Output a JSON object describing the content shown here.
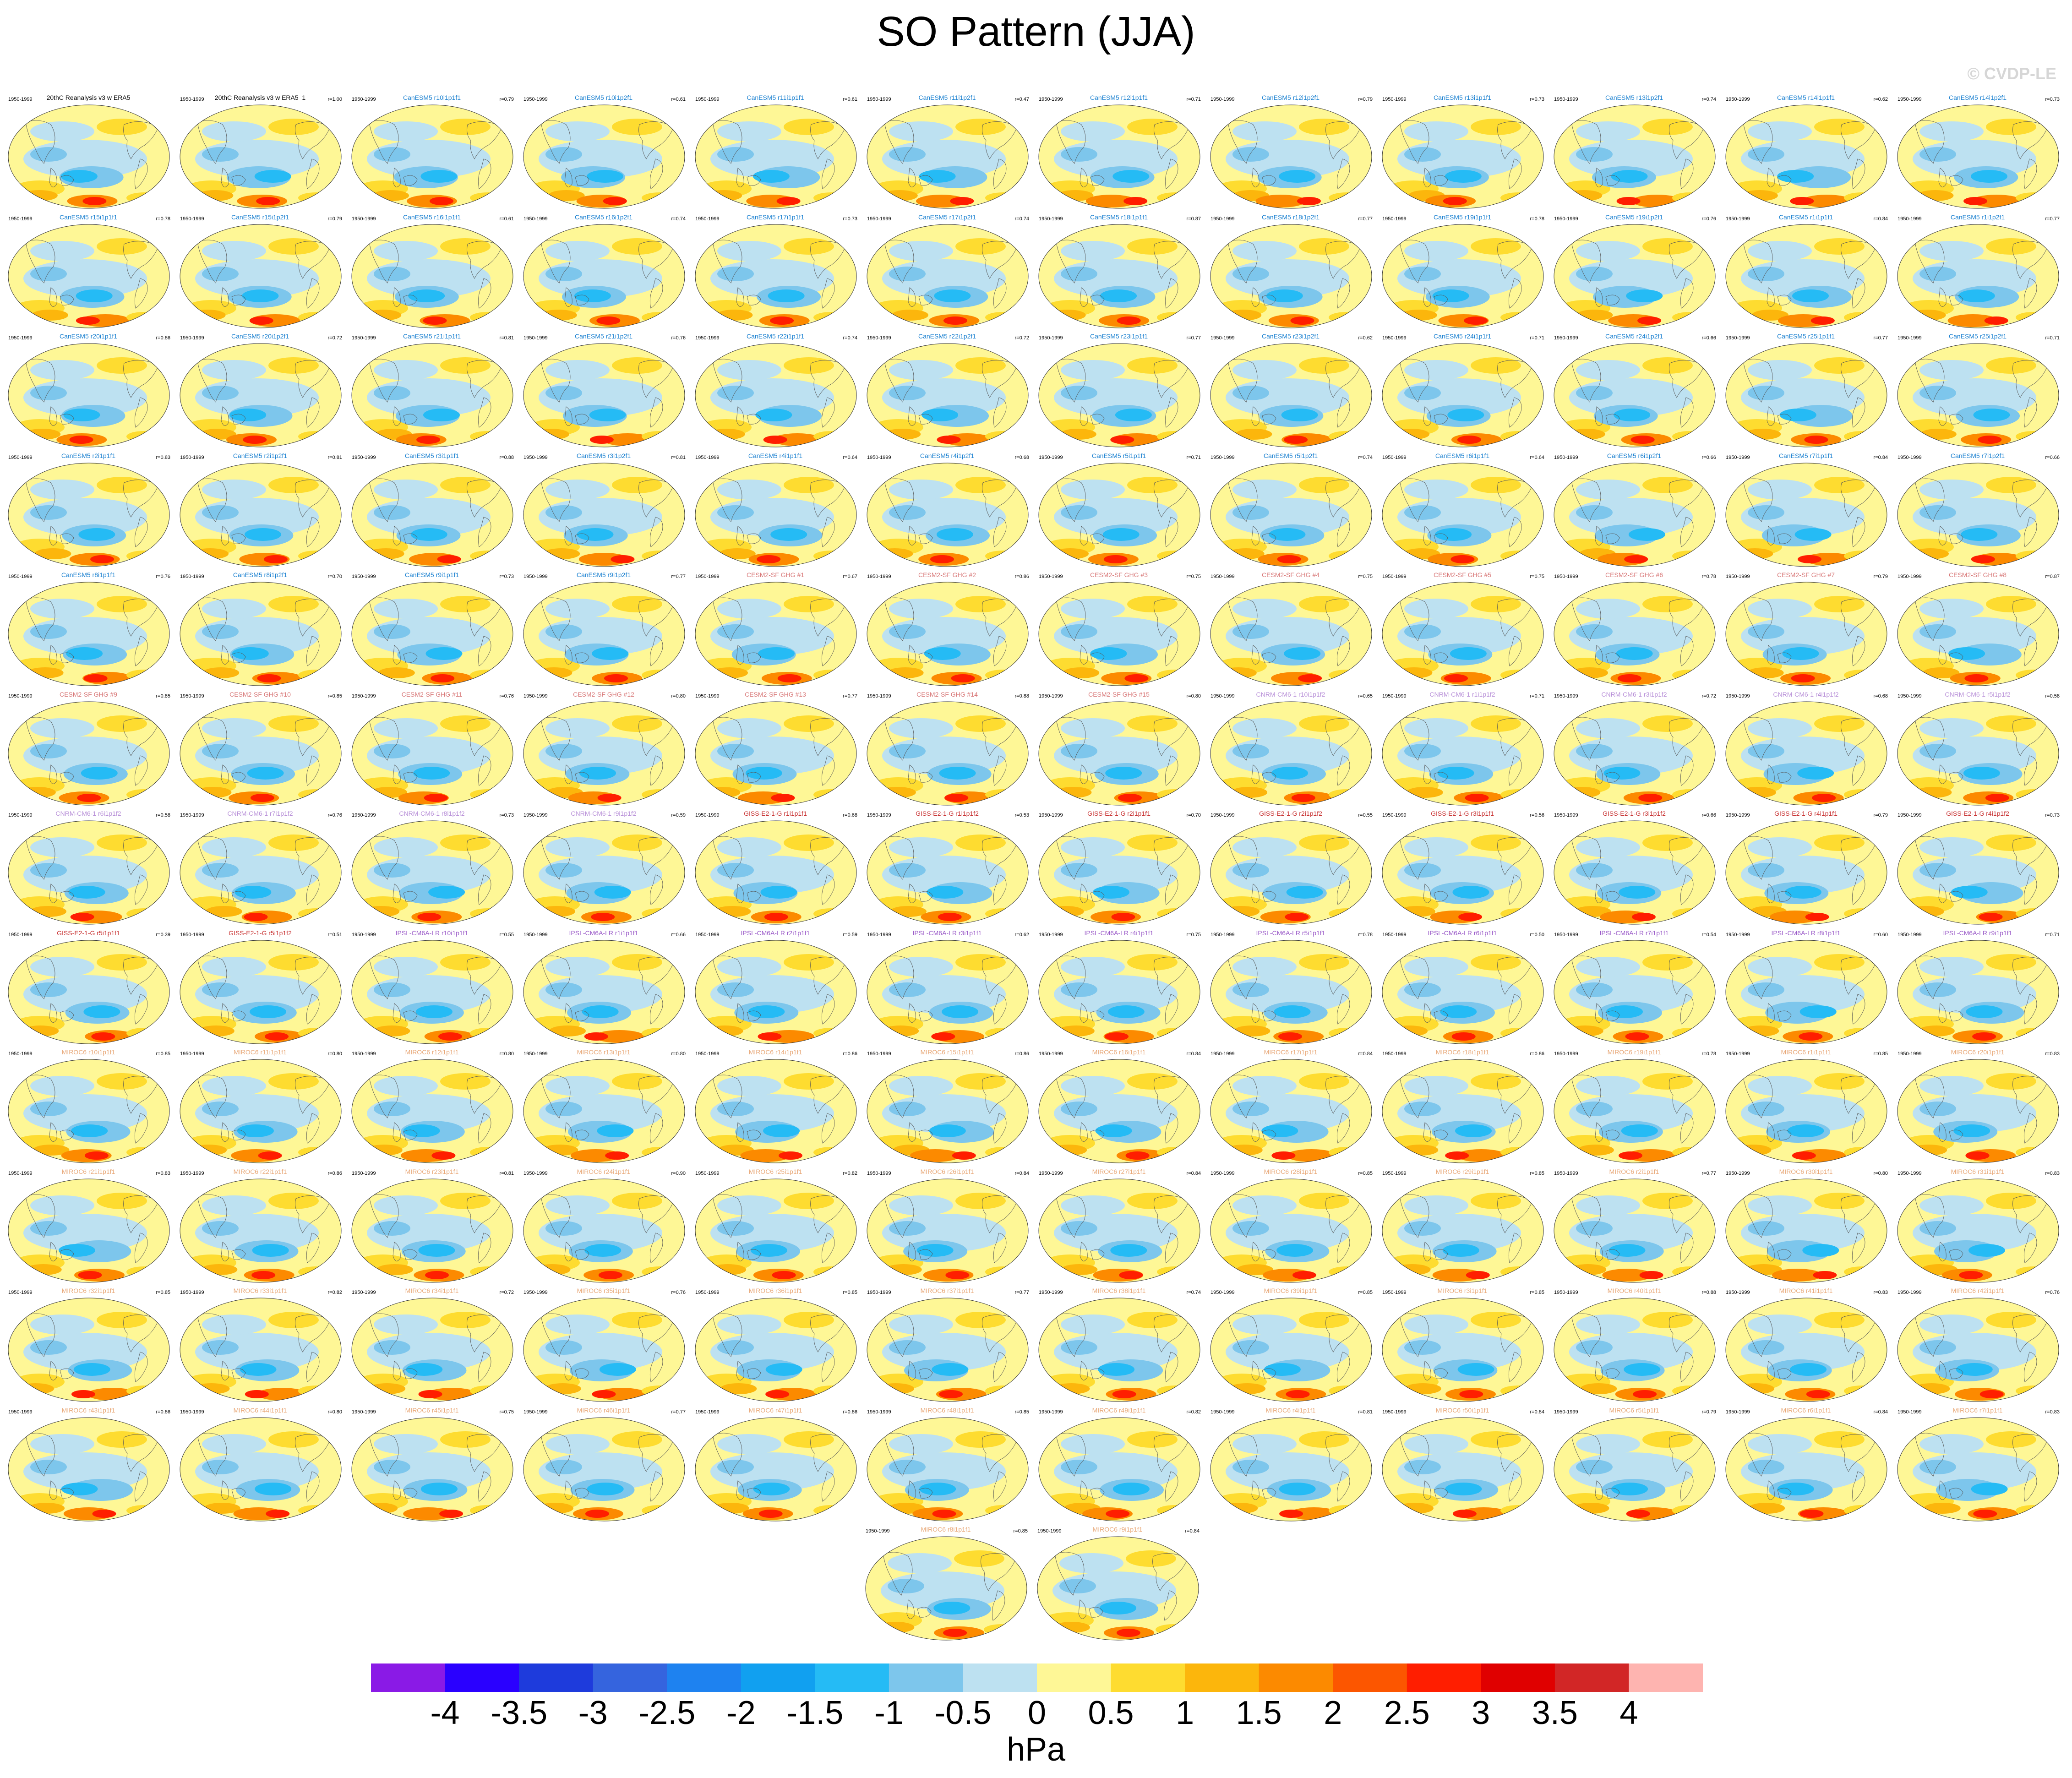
{
  "title": "SO Pattern (JJA)",
  "copyright": "© CVDP-LE",
  "units": "hPa",
  "colorbar": {
    "colors": [
      "#8a1ae6",
      "#2a00ff",
      "#1e3bdc",
      "#3564de",
      "#1e82f0",
      "#11a0f0",
      "#25bbf5",
      "#7dc6ec",
      "#bde1f1",
      "#fef796",
      "#fedc30",
      "#fcb60c",
      "#fc8a00",
      "#fc5600",
      "#ff1e00",
      "#e00000",
      "#d22626",
      "#feb4b0"
    ],
    "tick_labels": [
      "-4",
      "-3.5",
      "-3",
      "-2.5",
      "-2",
      "-1.5",
      "-1",
      "-0.5",
      "0",
      "0.5",
      "1",
      "1.5",
      "2",
      "2.5",
      "3",
      "3.5",
      "4"
    ]
  },
  "panel_period": "1950-1999",
  "panels": [
    {
      "label": "20thC Reanalysis v3 w ERA5",
      "r": "",
      "color": "#000000"
    },
    {
      "label": "20thC Reanalysis v3 w ERA5_1",
      "r": "r=1.00",
      "color": "#000000"
    },
    {
      "label": "CanESM5 r10i1p1f1",
      "r": "r=0.79",
      "color": "#1a80d0"
    },
    {
      "label": "CanESM5 r10i1p2f1",
      "r": "r=0.61",
      "color": "#1a80d0"
    },
    {
      "label": "CanESM5 r11i1p1f1",
      "r": "r=0.61",
      "color": "#1a80d0"
    },
    {
      "label": "CanESM5 r11i1p2f1",
      "r": "r=0.47",
      "color": "#1a80d0"
    },
    {
      "label": "CanESM5 r12i1p1f1",
      "r": "r=0.71",
      "color": "#1a80d0"
    },
    {
      "label": "CanESM5 r12i1p2f1",
      "r": "r=0.79",
      "color": "#1a80d0"
    },
    {
      "label": "CanESM5 r13i1p1f1",
      "r": "r=0.73",
      "color": "#1a80d0"
    },
    {
      "label": "CanESM5 r13i1p2f1",
      "r": "r=0.74",
      "color": "#1a80d0"
    },
    {
      "label": "CanESM5 r14i1p1f1",
      "r": "r=0.62",
      "color": "#1a80d0"
    },
    {
      "label": "CanESM5 r14i1p2f1",
      "r": "r=0.73",
      "color": "#1a80d0"
    },
    {
      "label": "CanESM5 r15i1p1f1",
      "r": "r=0.78",
      "color": "#1a80d0"
    },
    {
      "label": "CanESM5 r15i1p2f1",
      "r": "r=0.79",
      "color": "#1a80d0"
    },
    {
      "label": "CanESM5 r16i1p1f1",
      "r": "r=0.61",
      "color": "#1a80d0"
    },
    {
      "label": "CanESM5 r16i1p2f1",
      "r": "r=0.74",
      "color": "#1a80d0"
    },
    {
      "label": "CanESM5 r17i1p1f1",
      "r": "r=0.73",
      "color": "#1a80d0"
    },
    {
      "label": "CanESM5 r17i1p2f1",
      "r": "r=0.74",
      "color": "#1a80d0"
    },
    {
      "label": "CanESM5 r18i1p1f1",
      "r": "r=0.87",
      "color": "#1a80d0"
    },
    {
      "label": "CanESM5 r18i1p2f1",
      "r": "r=0.77",
      "color": "#1a80d0"
    },
    {
      "label": "CanESM5 r19i1p1f1",
      "r": "r=0.78",
      "color": "#1a80d0"
    },
    {
      "label": "CanESM5 r19i1p2f1",
      "r": "r=0.76",
      "color": "#1a80d0"
    },
    {
      "label": "CanESM5 r1i1p1f1",
      "r": "r=0.84",
      "color": "#1a80d0"
    },
    {
      "label": "CanESM5 r1i1p2f1",
      "r": "r=0.77",
      "color": "#1a80d0"
    },
    {
      "label": "CanESM5 r20i1p1f1",
      "r": "r=0.86",
      "color": "#1a80d0"
    },
    {
      "label": "CanESM5 r20i1p2f1",
      "r": "r=0.72",
      "color": "#1a80d0"
    },
    {
      "label": "CanESM5 r21i1p1f1",
      "r": "r=0.81",
      "color": "#1a80d0"
    },
    {
      "label": "CanESM5 r21i1p2f1",
      "r": "r=0.76",
      "color": "#1a80d0"
    },
    {
      "label": "CanESM5 r22i1p1f1",
      "r": "r=0.74",
      "color": "#1a80d0"
    },
    {
      "label": "CanESM5 r22i1p2f1",
      "r": "r=0.72",
      "color": "#1a80d0"
    },
    {
      "label": "CanESM5 r23i1p1f1",
      "r": "r=0.77",
      "color": "#1a80d0"
    },
    {
      "label": "CanESM5 r23i1p2f1",
      "r": "r=0.62",
      "color": "#1a80d0"
    },
    {
      "label": "CanESM5 r24i1p1f1",
      "r": "r=0.71",
      "color": "#1a80d0"
    },
    {
      "label": "CanESM5 r24i1p2f1",
      "r": "r=0.66",
      "color": "#1a80d0"
    },
    {
      "label": "CanESM5 r25i1p1f1",
      "r": "r=0.77",
      "color": "#1a80d0"
    },
    {
      "label": "CanESM5 r25i1p2f1",
      "r": "r=0.71",
      "color": "#1a80d0"
    },
    {
      "label": "CanESM5 r2i1p1f1",
      "r": "r=0.83",
      "color": "#1a80d0"
    },
    {
      "label": "CanESM5 r2i1p2f1",
      "r": "r=0.81",
      "color": "#1a80d0"
    },
    {
      "label": "CanESM5 r3i1p1f1",
      "r": "r=0.88",
      "color": "#1a80d0"
    },
    {
      "label": "CanESM5 r3i1p2f1",
      "r": "r=0.81",
      "color": "#1a80d0"
    },
    {
      "label": "CanESM5 r4i1p1f1",
      "r": "r=0.64",
      "color": "#1a80d0"
    },
    {
      "label": "CanESM5 r4i1p2f1",
      "r": "r=0.68",
      "color": "#1a80d0"
    },
    {
      "label": "CanESM5 r5i1p1f1",
      "r": "r=0.71",
      "color": "#1a80d0"
    },
    {
      "label": "CanESM5 r5i1p2f1",
      "r": "r=0.74",
      "color": "#1a80d0"
    },
    {
      "label": "CanESM5 r6i1p1f1",
      "r": "r=0.64",
      "color": "#1a80d0"
    },
    {
      "label": "CanESM5 r6i1p2f1",
      "r": "r=0.66",
      "color": "#1a80d0"
    },
    {
      "label": "CanESM5 r7i1p1f1",
      "r": "r=0.84",
      "color": "#1a80d0"
    },
    {
      "label": "CanESM5 r7i1p2f1",
      "r": "r=0.66",
      "color": "#1a80d0"
    },
    {
      "label": "CanESM5 r8i1p1f1",
      "r": "r=0.76",
      "color": "#1a80d0"
    },
    {
      "label": "CanESM5 r8i1p2f1",
      "r": "r=0.70",
      "color": "#1a80d0"
    },
    {
      "label": "CanESM5 r9i1p1f1",
      "r": "r=0.73",
      "color": "#1a80d0"
    },
    {
      "label": "CanESM5 r9i1p2f1",
      "r": "r=0.77",
      "color": "#1a80d0"
    },
    {
      "label": "CESM2-SF GHG #1",
      "r": "r=0.67",
      "color": "#d87878"
    },
    {
      "label": "CESM2-SF GHG #2",
      "r": "r=0.86",
      "color": "#d87878"
    },
    {
      "label": "CESM2-SF GHG #3",
      "r": "r=0.75",
      "color": "#d87878"
    },
    {
      "label": "CESM2-SF GHG #4",
      "r": "r=0.75",
      "color": "#d87878"
    },
    {
      "label": "CESM2-SF GHG #5",
      "r": "r=0.75",
      "color": "#d87878"
    },
    {
      "label": "CESM2-SF GHG #6",
      "r": "r=0.78",
      "color": "#d87878"
    },
    {
      "label": "CESM2-SF GHG #7",
      "r": "r=0.79",
      "color": "#d87878"
    },
    {
      "label": "CESM2-SF GHG #8",
      "r": "r=0.87",
      "color": "#d87878"
    },
    {
      "label": "CESM2-SF GHG #9",
      "r": "r=0.85",
      "color": "#d87878"
    },
    {
      "label": "CESM2-SF GHG #10",
      "r": "r=0.85",
      "color": "#d87878"
    },
    {
      "label": "CESM2-SF GHG #11",
      "r": "r=0.76",
      "color": "#d87878"
    },
    {
      "label": "CESM2-SF GHG #12",
      "r": "r=0.80",
      "color": "#d87878"
    },
    {
      "label": "CESM2-SF GHG #13",
      "r": "r=0.77",
      "color": "#d87878"
    },
    {
      "label": "CESM2-SF GHG #14",
      "r": "r=0.88",
      "color": "#d87878"
    },
    {
      "label": "CESM2-SF GHG #15",
      "r": "r=0.80",
      "color": "#d87878"
    },
    {
      "label": "CNRM-CM6-1 r10i1p1f2",
      "r": "r=0.65",
      "color": "#b890d8"
    },
    {
      "label": "CNRM-CM6-1 r1i1p1f2",
      "r": "r=0.71",
      "color": "#b890d8"
    },
    {
      "label": "CNRM-CM6-1 r3i1p1f2",
      "r": "r=0.72",
      "color": "#b890d8"
    },
    {
      "label": "CNRM-CM6-1 r4i1p1f2",
      "r": "r=0.68",
      "color": "#b890d8"
    },
    {
      "label": "CNRM-CM6-1 r5i1p1f2",
      "r": "r=0.58",
      "color": "#b890d8"
    },
    {
      "label": "CNRM-CM6-1 r6i1p1f2",
      "r": "r=0.58",
      "color": "#b890d8"
    },
    {
      "label": "CNRM-CM6-1 r7i1p1f2",
      "r": "r=0.76",
      "color": "#b890d8"
    },
    {
      "label": "CNRM-CM6-1 r8i1p1f2",
      "r": "r=0.73",
      "color": "#b890d8"
    },
    {
      "label": "CNRM-CM6-1 r9i1p1f2",
      "r": "r=0.59",
      "color": "#b890d8"
    },
    {
      "label": "GISS-E2-1-G r1i1p1f1",
      "r": "r=0.68",
      "color": "#c83232"
    },
    {
      "label": "GISS-E2-1-G r1i1p1f2",
      "r": "r=0.53",
      "color": "#c83232"
    },
    {
      "label": "GISS-E2-1-G r2i1p1f1",
      "r": "r=0.70",
      "color": "#c83232"
    },
    {
      "label": "GISS-E2-1-G r2i1p1f2",
      "r": "r=0.55",
      "color": "#c83232"
    },
    {
      "label": "GISS-E2-1-G r3i1p1f1",
      "r": "r=0.56",
      "color": "#c83232"
    },
    {
      "label": "GISS-E2-1-G r3i1p1f2",
      "r": "r=0.66",
      "color": "#c83232"
    },
    {
      "label": "GISS-E2-1-G r4i1p1f1",
      "r": "r=0.79",
      "color": "#c83232"
    },
    {
      "label": "GISS-E2-1-G r4i1p1f2",
      "r": "r=0.73",
      "color": "#c83232"
    },
    {
      "label": "GISS-E2-1-G r5i1p1f1",
      "r": "r=0.39",
      "color": "#c83232"
    },
    {
      "label": "GISS-E2-1-G r5i1p1f2",
      "r": "r=0.51",
      "color": "#c83232"
    },
    {
      "label": "IPSL-CM6A-LR r10i1p1f1",
      "r": "r=0.55",
      "color": "#9a5ac8"
    },
    {
      "label": "IPSL-CM6A-LR r1i1p1f1",
      "r": "r=0.66",
      "color": "#9a5ac8"
    },
    {
      "label": "IPSL-CM6A-LR r2i1p1f1",
      "r": "r=0.59",
      "color": "#9a5ac8"
    },
    {
      "label": "IPSL-CM6A-LR r3i1p1f1",
      "r": "r=0.62",
      "color": "#9a5ac8"
    },
    {
      "label": "IPSL-CM6A-LR r4i1p1f1",
      "r": "r=0.75",
      "color": "#9a5ac8"
    },
    {
      "label": "IPSL-CM6A-LR r5i1p1f1",
      "r": "r=0.78",
      "color": "#9a5ac8"
    },
    {
      "label": "IPSL-CM6A-LR r6i1p1f1",
      "r": "r=0.50",
      "color": "#9a5ac8"
    },
    {
      "label": "IPSL-CM6A-LR r7i1p1f1",
      "r": "r=0.54",
      "color": "#9a5ac8"
    },
    {
      "label": "IPSL-CM6A-LR r8i1p1f1",
      "r": "r=0.60",
      "color": "#9a5ac8"
    },
    {
      "label": "IPSL-CM6A-LR r9i1p1f1",
      "r": "r=0.71",
      "color": "#9a5ac8"
    },
    {
      "label": "MIROC6 r10i1p1f1",
      "r": "r=0.85",
      "color": "#e8a878"
    },
    {
      "label": "MIROC6 r11i1p1f1",
      "r": "r=0.80",
      "color": "#e8a878"
    },
    {
      "label": "MIROC6 r12i1p1f1",
      "r": "r=0.80",
      "color": "#e8a878"
    },
    {
      "label": "MIROC6 r13i1p1f1",
      "r": "r=0.80",
      "color": "#e8a878"
    },
    {
      "label": "MIROC6 r14i1p1f1",
      "r": "r=0.86",
      "color": "#e8a878"
    },
    {
      "label": "MIROC6 r15i1p1f1",
      "r": "r=0.86",
      "color": "#e8a878"
    },
    {
      "label": "MIROC6 r16i1p1f1",
      "r": "r=0.84",
      "color": "#e8a878"
    },
    {
      "label": "MIROC6 r17i1p1f1",
      "r": "r=0.84",
      "color": "#e8a878"
    },
    {
      "label": "MIROC6 r18i1p1f1",
      "r": "r=0.86",
      "color": "#e8a878"
    },
    {
      "label": "MIROC6 r19i1p1f1",
      "r": "r=0.78",
      "color": "#e8a878"
    },
    {
      "label": "MIROC6 r1i1p1f1",
      "r": "r=0.85",
      "color": "#e8a878"
    },
    {
      "label": "MIROC6 r20i1p1f1",
      "r": "r=0.83",
      "color": "#e8a878"
    },
    {
      "label": "MIROC6 r21i1p1f1",
      "r": "r=0.83",
      "color": "#e8a878"
    },
    {
      "label": "MIROC6 r22i1p1f1",
      "r": "r=0.86",
      "color": "#e8a878"
    },
    {
      "label": "MIROC6 r23i1p1f1",
      "r": "r=0.81",
      "color": "#e8a878"
    },
    {
      "label": "MIROC6 r24i1p1f1",
      "r": "r=0.90",
      "color": "#e8a878"
    },
    {
      "label": "MIROC6 r25i1p1f1",
      "r": "r=0.82",
      "color": "#e8a878"
    },
    {
      "label": "MIROC6 r26i1p1f1",
      "r": "r=0.84",
      "color": "#e8a878"
    },
    {
      "label": "MIROC6 r27i1p1f1",
      "r": "r=0.84",
      "color": "#e8a878"
    },
    {
      "label": "MIROC6 r28i1p1f1",
      "r": "r=0.85",
      "color": "#e8a878"
    },
    {
      "label": "MIROC6 r29i1p1f1",
      "r": "r=0.85",
      "color": "#e8a878"
    },
    {
      "label": "MIROC6 r2i1p1f1",
      "r": "r=0.77",
      "color": "#e8a878"
    },
    {
      "label": "MIROC6 r30i1p1f1",
      "r": "r=0.80",
      "color": "#e8a878"
    },
    {
      "label": "MIROC6 r31i1p1f1",
      "r": "r=0.83",
      "color": "#e8a878"
    },
    {
      "label": "MIROC6 r32i1p1f1",
      "r": "r=0.85",
      "color": "#e8a878"
    },
    {
      "label": "MIROC6 r33i1p1f1",
      "r": "r=0.82",
      "color": "#e8a878"
    },
    {
      "label": "MIROC6 r34i1p1f1",
      "r": "r=0.72",
      "color": "#e8a878"
    },
    {
      "label": "MIROC6 r35i1p1f1",
      "r": "r=0.76",
      "color": "#e8a878"
    },
    {
      "label": "MIROC6 r36i1p1f1",
      "r": "r=0.85",
      "color": "#e8a878"
    },
    {
      "label": "MIROC6 r37i1p1f1",
      "r": "r=0.77",
      "color": "#e8a878"
    },
    {
      "label": "MIROC6 r38i1p1f1",
      "r": "r=0.74",
      "color": "#e8a878"
    },
    {
      "label": "MIROC6 r39i1p1f1",
      "r": "r=0.85",
      "color": "#e8a878"
    },
    {
      "label": "MIROC6 r3i1p1f1",
      "r": "r=0.85",
      "color": "#e8a878"
    },
    {
      "label": "MIROC6 r40i1p1f1",
      "r": "r=0.88",
      "color": "#e8a878"
    },
    {
      "label": "MIROC6 r41i1p1f1",
      "r": "r=0.83",
      "color": "#e8a878"
    },
    {
      "label": "MIROC6 r42i1p1f1",
      "r": "r=0.76",
      "color": "#e8a878"
    },
    {
      "label": "MIROC6 r43i1p1f1",
      "r": "r=0.86",
      "color": "#e8a878"
    },
    {
      "label": "MIROC6 r44i1p1f1",
      "r": "r=0.80",
      "color": "#e8a878"
    },
    {
      "label": "MIROC6 r45i1p1f1",
      "r": "r=0.75",
      "color": "#e8a878"
    },
    {
      "label": "MIROC6 r46i1p1f1",
      "r": "r=0.77",
      "color": "#e8a878"
    },
    {
      "label": "MIROC6 r47i1p1f1",
      "r": "r=0.86",
      "color": "#e8a878"
    },
    {
      "label": "MIROC6 r48i1p1f1",
      "r": "r=0.85",
      "color": "#e8a878"
    },
    {
      "label": "MIROC6 r49i1p1f1",
      "r": "r=0.82",
      "color": "#e8a878"
    },
    {
      "label": "MIROC6 r4i1p1f1",
      "r": "r=0.81",
      "color": "#e8a878"
    },
    {
      "label": "MIROC6 r50i1p1f1",
      "r": "r=0.84",
      "color": "#e8a878"
    },
    {
      "label": "MIROC6 r5i1p1f1",
      "r": "r=0.79",
      "color": "#e8a878"
    },
    {
      "label": "MIROC6 r6i1p1f1",
      "r": "r=0.84",
      "color": "#e8a878"
    },
    {
      "label": "MIROC6 r7i1p1f1",
      "r": "r=0.83",
      "color": "#e8a878"
    },
    {
      "label": "MIROC6 r8i1p1f1",
      "r": "r=0.85",
      "color": "#e8a878"
    },
    {
      "label": "MIROC6 r9i1p1f1",
      "r": "r=0.84",
      "color": "#e8a878"
    }
  ]
}
